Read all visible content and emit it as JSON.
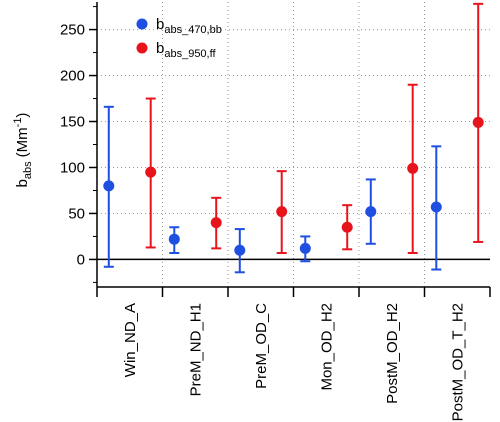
{
  "chart_data": {
    "type": "scatter",
    "title": "",
    "ylabel": {
      "main": "b",
      "sub": "abs",
      "unit_prefix": "(Mm",
      "unit_sup": "-1",
      "unit_suffix": ")"
    },
    "xlabel": "",
    "ylim": [
      -30,
      280
    ],
    "yticks": [
      0,
      50,
      100,
      150,
      200,
      250
    ],
    "grid": true,
    "legend_position": "top-left",
    "categories": [
      "Win_ND_A",
      "PreM_ND_H1",
      "PreM_OD_C",
      "Mon_OD_H2",
      "PostM_OD_H2",
      "PostM_OD_T_H2"
    ],
    "series": [
      {
        "name": "b",
        "name_sub": "abs_470,bb",
        "color": "#1f4fe0",
        "values": [
          80,
          22,
          10,
          12,
          52,
          57
        ],
        "err_low": [
          -8,
          7,
          -14,
          -2,
          17,
          -11
        ],
        "err_high": [
          166,
          35,
          33,
          25,
          87,
          123
        ]
      },
      {
        "name": "b",
        "name_sub": "abs_950,ff",
        "color": "#e8141c",
        "values": [
          95,
          40,
          52,
          35,
          99,
          149
        ],
        "err_low": [
          13,
          12,
          7,
          11,
          7,
          19
        ],
        "err_high": [
          175,
          67,
          96,
          59,
          190,
          278
        ]
      }
    ]
  }
}
